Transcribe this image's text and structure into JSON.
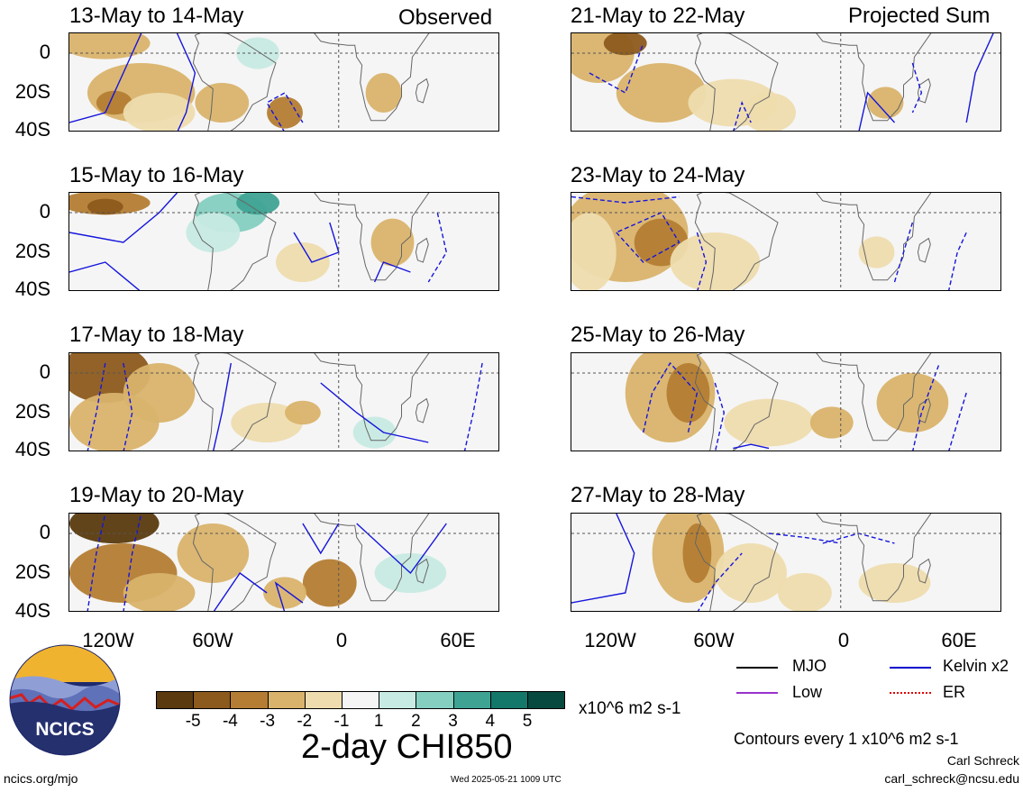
{
  "header_left": "Observed",
  "header_right": "Projected Sum",
  "panels_left": [
    {
      "title": "13-May to 14-May"
    },
    {
      "title": "15-May to 16-May"
    },
    {
      "title": "17-May to 18-May"
    },
    {
      "title": "19-May to 20-May"
    }
  ],
  "panels_right": [
    {
      "title": "21-May to 22-May"
    },
    {
      "title": "23-May to 24-May"
    },
    {
      "title": "25-May to 26-May"
    },
    {
      "title": "27-May to 28-May"
    }
  ],
  "lat_labels": [
    "0",
    "20S",
    "40S"
  ],
  "lon_labels": [
    "120W",
    "60W",
    "0",
    "60E"
  ],
  "colorbar": {
    "colors": [
      "#5a3a0e",
      "#8c5a1c",
      "#b47d33",
      "#d9b36c",
      "#eedcae",
      "#f5f5f5",
      "#c7eae2",
      "#84cfc0",
      "#3fa394",
      "#13776a",
      "#07493f"
    ],
    "labels": [
      "-5",
      "-4",
      "-3",
      "-2",
      "-1",
      "1",
      "2",
      "3",
      "4",
      "5"
    ],
    "units": "x10^6 m2 s-1"
  },
  "main_title": "2-day CHI850",
  "legend": [
    {
      "label": "MJO",
      "color": "#000000"
    },
    {
      "label": "Kelvin x2",
      "color": "#0000cc"
    },
    {
      "label": "Low",
      "color": "#9933cc"
    },
    {
      "label": "ER",
      "color": "#dd0000"
    }
  ],
  "contour_note": "Contours every 1 x10^6 m2 s-1",
  "author": "Carl Schreck",
  "email": "carl_schreck@ncsu.edu",
  "site": "ncics.org/mjo",
  "timestamp": "Wed 2025-05-21 1009 UTC",
  "logo_text": "NCICS"
}
